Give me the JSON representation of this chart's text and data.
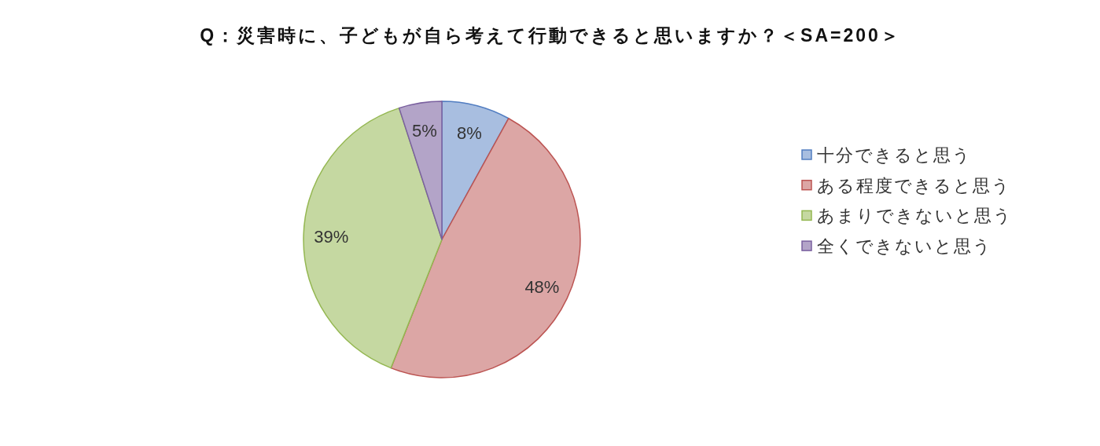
{
  "chart_data": {
    "type": "pie",
    "title": "Q：災害時に、子どもが自ら考えて行動できると思いますか？＜SA=200＞",
    "categories": [
      "十分できると思う",
      "ある程度できると思う",
      "あまりできないと思う",
      "全くできないと思う"
    ],
    "values": [
      8,
      48,
      39,
      5
    ],
    "colors": [
      "#a8bee0",
      "#dca6a5",
      "#c5d8a1",
      "#b3a4c8"
    ],
    "value_labels": [
      "8%",
      "48%",
      "39%",
      "5%"
    ],
    "legend": "right"
  }
}
